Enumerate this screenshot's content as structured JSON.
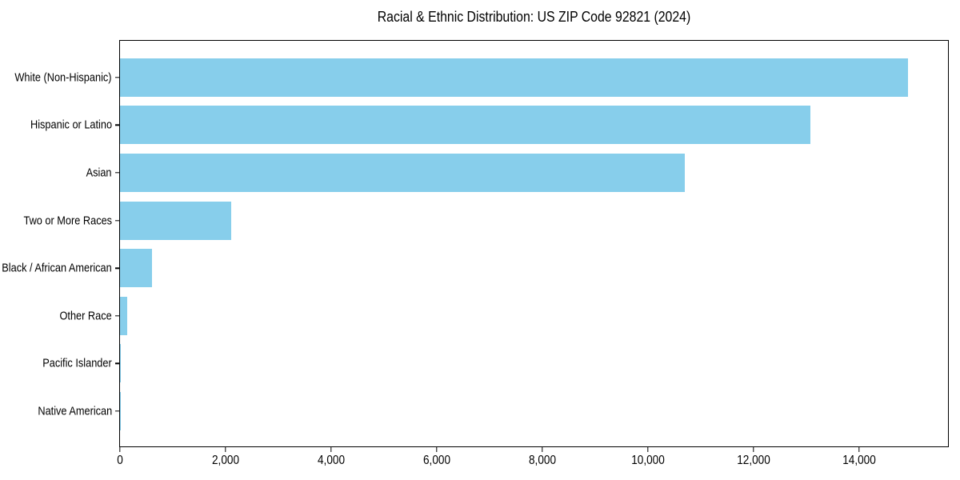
{
  "window": {
    "background": "#ffffff"
  },
  "chart_data": {
    "type": "bar",
    "orientation": "horizontal",
    "title": "Racial & Ethnic Distribution: US ZIP Code 92821 (2024)",
    "categories": [
      "White (Non-Hispanic)",
      "Hispanic or Latino",
      "Asian",
      "Two or More Races",
      "Black / African American",
      "Other Race",
      "Pacific Islander",
      "Native American"
    ],
    "values": [
      14930,
      13080,
      10690,
      2100,
      610,
      130,
      20,
      10
    ],
    "xlabel": "",
    "ylabel": "",
    "xlim": [
      0,
      15680
    ],
    "xticks": [
      0,
      2000,
      4000,
      6000,
      8000,
      10000,
      12000,
      14000
    ],
    "xtick_labels": [
      "0",
      "2,000",
      "4,000",
      "6,000",
      "8,000",
      "10,000",
      "12,000",
      "14,000"
    ],
    "bar_color": "#87CEEB",
    "axis_color": "#000000",
    "text_color": "#000000",
    "grid": false,
    "legend": null
  }
}
